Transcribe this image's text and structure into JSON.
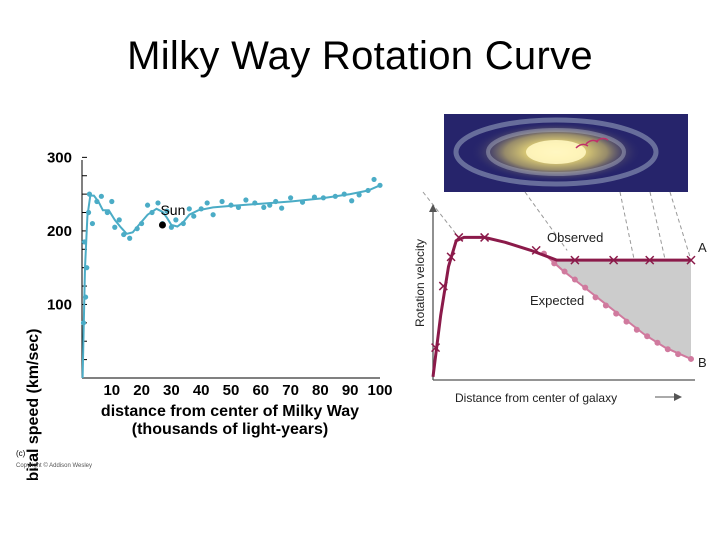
{
  "slide": {
    "title": "Milky Way Rotation Curve"
  },
  "chart_data": [
    {
      "type": "scatter",
      "title": "",
      "xlabel": "distance from center of Milky Way",
      "xlabel2": "(thousands of light-years)",
      "ylabel": "orbital speed (km/sec)",
      "x_ticks": [
        10,
        20,
        30,
        40,
        50,
        60,
        70,
        80,
        90,
        100
      ],
      "y_ticks": [
        100,
        200,
        300
      ],
      "xlim": [
        0,
        100
      ],
      "ylim": [
        0,
        310
      ],
      "points": [
        [
          0.5,
          75
        ],
        [
          0.8,
          185
        ],
        [
          1.2,
          110
        ],
        [
          1.6,
          150
        ],
        [
          2.2,
          225
        ],
        [
          2.5,
          250
        ],
        [
          3.5,
          210
        ],
        [
          5,
          240
        ],
        [
          6.5,
          247
        ],
        [
          8.5,
          225
        ],
        [
          10,
          240
        ],
        [
          11,
          205
        ],
        [
          12.5,
          215
        ],
        [
          14,
          195
        ],
        [
          16,
          190
        ],
        [
          18.5,
          203
        ],
        [
          20,
          210
        ],
        [
          22,
          235
        ],
        [
          23.5,
          225
        ],
        [
          25.5,
          238
        ],
        [
          27,
          210
        ],
        [
          28.5,
          227
        ],
        [
          30,
          205
        ],
        [
          31.5,
          215
        ],
        [
          34,
          210
        ],
        [
          36,
          230
        ],
        [
          37.5,
          220
        ],
        [
          40,
          230
        ],
        [
          42,
          238
        ],
        [
          44,
          222
        ],
        [
          47,
          240
        ],
        [
          50,
          235
        ],
        [
          52.5,
          232
        ],
        [
          55,
          242
        ],
        [
          58,
          238
        ],
        [
          61,
          232
        ],
        [
          63,
          235
        ],
        [
          65,
          240
        ],
        [
          67,
          231
        ],
        [
          70,
          245
        ],
        [
          74,
          239
        ],
        [
          78,
          246
        ],
        [
          81,
          245
        ],
        [
          85,
          247
        ],
        [
          88,
          250
        ],
        [
          90.5,
          241
        ],
        [
          93,
          249
        ],
        [
          96,
          255
        ],
        [
          98,
          270
        ],
        [
          100,
          262
        ]
      ],
      "curve": [
        [
          0.2,
          0
        ],
        [
          1,
          150
        ],
        [
          1.8,
          220
        ],
        [
          2.8,
          248
        ],
        [
          4,
          248
        ],
        [
          5.5,
          240
        ],
        [
          7,
          228
        ],
        [
          9,
          228
        ],
        [
          11,
          215
        ],
        [
          13,
          205
        ],
        [
          15,
          196
        ],
        [
          17,
          198
        ],
        [
          19.5,
          210
        ],
        [
          22,
          222
        ],
        [
          25,
          230
        ],
        [
          27,
          226
        ],
        [
          28.5,
          218
        ],
        [
          30,
          208
        ],
        [
          32,
          206
        ],
        [
          34,
          212
        ],
        [
          36,
          222
        ],
        [
          39,
          228
        ],
        [
          44,
          232
        ],
        [
          50,
          234
        ],
        [
          60,
          237
        ],
        [
          70,
          240
        ],
        [
          80,
          244
        ],
        [
          90,
          250
        ],
        [
          96,
          255
        ],
        [
          100,
          262
        ]
      ],
      "highlight": {
        "label": "Sun",
        "x": 27,
        "y": 208
      },
      "caption": "(c)",
      "copyright": "Copyright © Addison Wesley",
      "colors": {
        "series": "#4bacc6",
        "axis": "#000000",
        "highlight": "#000000"
      }
    },
    {
      "type": "line",
      "xlabel": "Distance from center of galaxy",
      "ylabel": "Rotation velocity",
      "xlim": [
        0,
        100
      ],
      "ylim": [
        0,
        100
      ],
      "series": [
        {
          "name": "Observed",
          "end_label": "A",
          "color": "#8b1a4a",
          "points": [
            [
              0,
              2
            ],
            [
              3,
              40
            ],
            [
              6,
              70
            ],
            [
              9,
              86
            ],
            [
              12,
              88
            ],
            [
              20,
              88
            ],
            [
              28,
              85
            ],
            [
              38,
              80
            ],
            [
              48,
              74
            ],
            [
              58,
              74
            ],
            [
              70,
              74
            ],
            [
              84,
              74
            ],
            [
              100,
              74
            ]
          ],
          "markers": [
            [
              1,
              20
            ],
            [
              4,
              58
            ],
            [
              7,
              76
            ],
            [
              10,
              88
            ],
            [
              20,
              88
            ],
            [
              40,
              80
            ],
            [
              55,
              74
            ],
            [
              70,
              74
            ],
            [
              84,
              74
            ],
            [
              100,
              74
            ]
          ]
        },
        {
          "name": "Expected",
          "end_label": "B",
          "color": "#d07a9e",
          "points": [
            [
              43,
              78
            ],
            [
              50,
              68
            ],
            [
              58,
              58
            ],
            [
              66,
              48
            ],
            [
              74,
              38
            ],
            [
              82,
              28
            ],
            [
              90,
              20
            ],
            [
              100,
              13
            ]
          ],
          "markers": [
            [
              43,
              78
            ],
            [
              47,
              72
            ],
            [
              51,
              67
            ],
            [
              55,
              62
            ],
            [
              59,
              57
            ],
            [
              63,
              51
            ],
            [
              67,
              46
            ],
            [
              71,
              41
            ],
            [
              75,
              36
            ],
            [
              79,
              31
            ],
            [
              83,
              27
            ],
            [
              87,
              23
            ],
            [
              91,
              19
            ],
            [
              95,
              16
            ],
            [
              100,
              13
            ]
          ]
        }
      ],
      "colors": {
        "shade": "#cccccc",
        "axis": "#555555",
        "guide": "#999999"
      }
    }
  ]
}
